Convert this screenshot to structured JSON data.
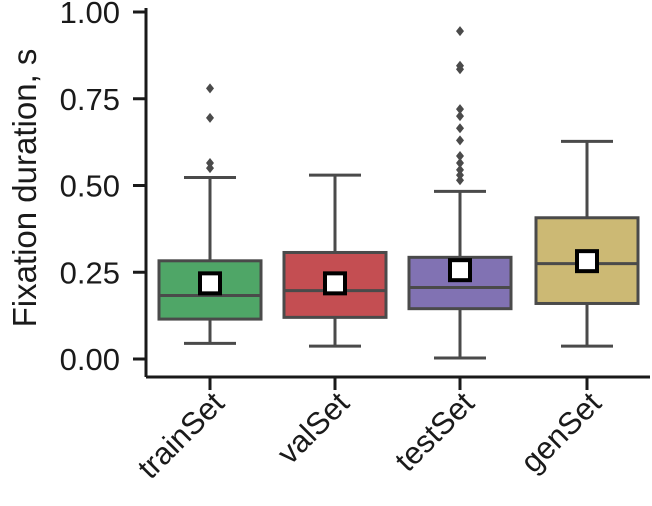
{
  "chart_data": {
    "type": "box",
    "title": "",
    "xlabel": "",
    "ylabel": "Fixation duration, s",
    "ylim": [
      0.0,
      1.0
    ],
    "yticks": [
      0.0,
      0.25,
      0.5,
      0.75,
      1.0
    ],
    "ytick_labels": [
      "0.00",
      "0.25",
      "0.50",
      "0.75",
      "1.00"
    ],
    "categories": [
      "trainSet",
      "valSet",
      "testSet",
      "genSet"
    ],
    "boxes": [
      {
        "name": "trainSet",
        "color": "#4fa667",
        "whisker_low": 0.045,
        "q1": 0.115,
        "median": 0.183,
        "q3": 0.283,
        "whisker_high": 0.523,
        "mean": 0.218,
        "outliers": [
          0.55,
          0.565,
          0.695,
          0.78
        ]
      },
      {
        "name": "valSet",
        "color": "#c44e52",
        "whisker_low": 0.037,
        "q1": 0.12,
        "median": 0.197,
        "q3": 0.307,
        "whisker_high": 0.53,
        "mean": 0.218,
        "outliers": []
      },
      {
        "name": "testSet",
        "color": "#8172b3",
        "whisker_low": 0.003,
        "q1": 0.145,
        "median": 0.206,
        "q3": 0.293,
        "whisker_high": 0.483,
        "mean": 0.256,
        "outliers": [
          0.515,
          0.53,
          0.545,
          0.565,
          0.585,
          0.63,
          0.665,
          0.7,
          0.72,
          0.835,
          0.845,
          0.945
        ]
      },
      {
        "name": "genSet",
        "color": "#ccb974",
        "whisker_low": 0.037,
        "q1": 0.16,
        "median": 0.275,
        "q3": 0.407,
        "whisker_high": 0.627,
        "mean": 0.282,
        "outliers": []
      }
    ]
  }
}
